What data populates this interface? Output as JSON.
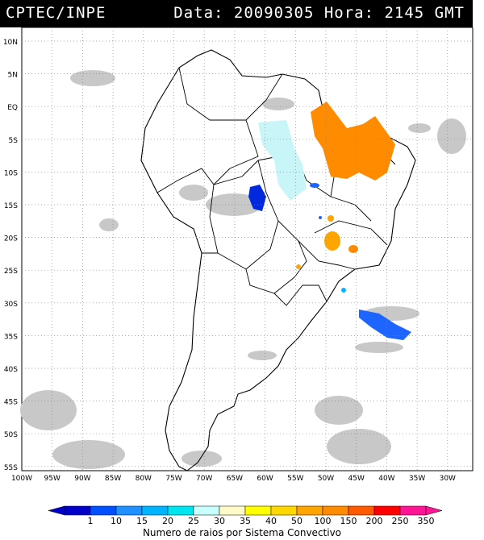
{
  "header": {
    "source": "CPTEC/INPE",
    "datetime": "Data: 20090305 Hora: 2145 GMT"
  },
  "map": {
    "lat_labels": [
      "10N",
      "5N",
      "EQ",
      "5S",
      "10S",
      "15S",
      "20S",
      "25S",
      "30S",
      "35S",
      "40S",
      "45S",
      "50S",
      "55S"
    ],
    "lon_labels": [
      "100W",
      "95W",
      "90W",
      "85W",
      "80W",
      "75W",
      "70W",
      "65W",
      "60W",
      "55W",
      "50W",
      "45W",
      "40W",
      "35W",
      "30W"
    ],
    "land_color": "#ffffff",
    "border_color": "#000000",
    "cloud_color": "#c8c8c8",
    "grid": "dotted"
  },
  "legend": {
    "title": "Numero de raios por Sistema Convectivo",
    "tick_labels": [
      "1",
      "10",
      "15",
      "20",
      "25",
      "30",
      "35",
      "40",
      "50",
      "100",
      "150",
      "200",
      "250",
      "350"
    ],
    "colors": [
      "#0000c8",
      "#0050ff",
      "#1e90ff",
      "#00b4ff",
      "#00e6f0",
      "#c8ffff",
      "#fffac8",
      "#ffff00",
      "#ffd700",
      "#ffa500",
      "#ff8c00",
      "#ff5a00",
      "#ff0000",
      "#ff1493"
    ]
  }
}
